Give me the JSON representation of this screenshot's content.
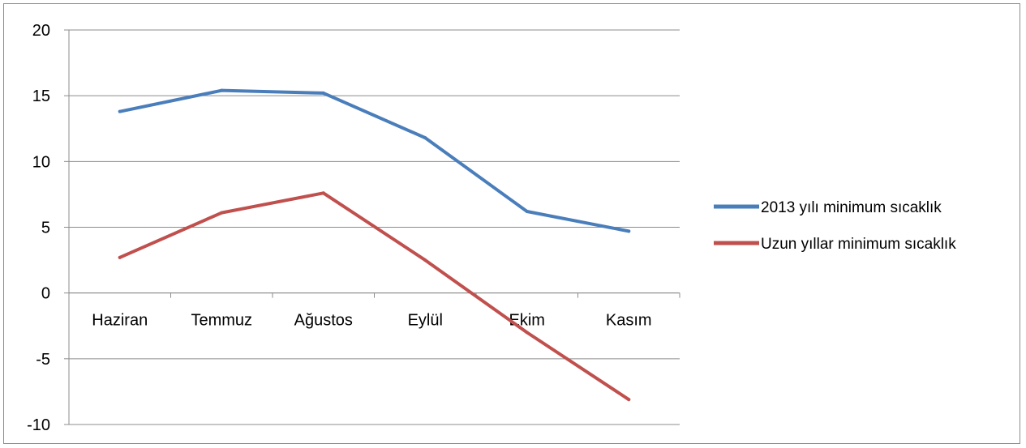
{
  "chart_data": {
    "type": "line",
    "categories": [
      "Haziran",
      "Temmuz",
      "Ağustos",
      "Eylül",
      "Ekim",
      "Kasım"
    ],
    "ylim": [
      -10,
      20
    ],
    "yticks": [
      "20",
      "15",
      "10",
      "5",
      "0",
      "-5",
      "-10"
    ],
    "grid": true,
    "legend_position": "right",
    "series": [
      {
        "name": "2013 yılı minimum sıcaklık",
        "color": "#4a7ebb",
        "values": [
          13.8,
          15.4,
          15.2,
          11.8,
          6.2,
          4.7
        ]
      },
      {
        "name": "Uzun yıllar minimum sıcaklık",
        "color": "#c0504d",
        "values": [
          2.7,
          6.1,
          7.6,
          2.5,
          -3.0,
          -8.1
        ]
      }
    ]
  }
}
